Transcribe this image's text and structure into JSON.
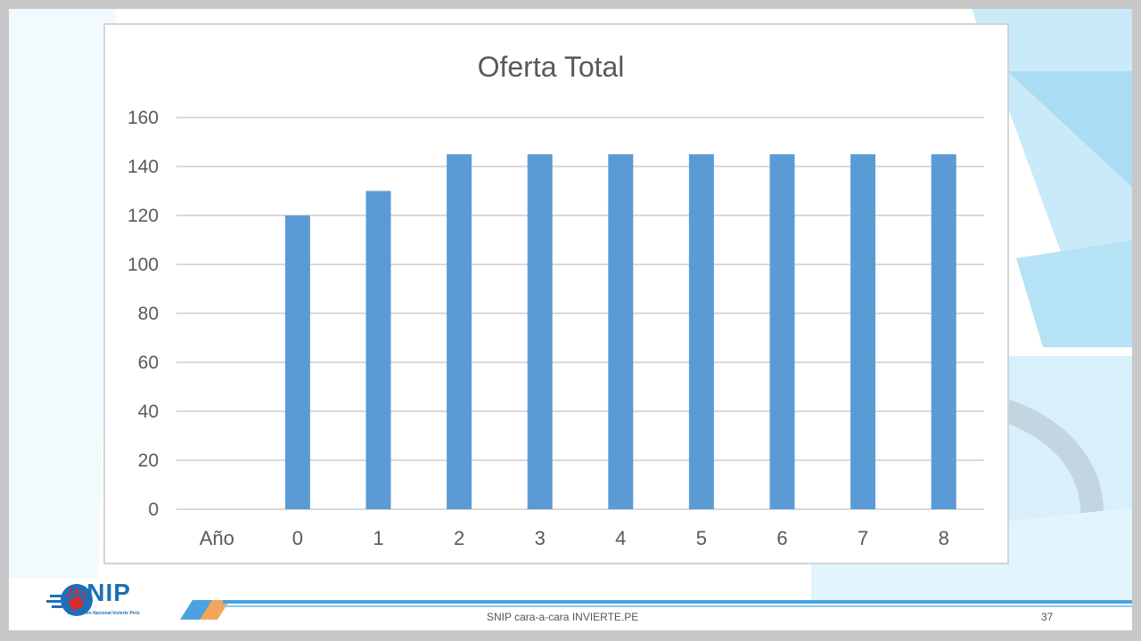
{
  "slide": {
    "footer_text": "SNIP cara-a-cara INVIERTE.PE",
    "page_number": "37"
  },
  "logo": {
    "name": "ANIP",
    "subtitle": "Asociación Nacional Invierte Perú"
  },
  "colors": {
    "bar": "#5b9bd5",
    "grid": "#d9d9d9",
    "axis_text": "#595959",
    "title": "#595959",
    "accent": "#1d6fb8",
    "background_accent": "#bfe4f6"
  },
  "chart_data": {
    "type": "bar",
    "title": "Oferta Total",
    "categories": [
      "Año",
      "0",
      "1",
      "2",
      "3",
      "4",
      "5",
      "6",
      "7",
      "8"
    ],
    "values": [
      0,
      120,
      130,
      145,
      145,
      145,
      145,
      145,
      145,
      145
    ],
    "ylim": [
      0,
      160
    ],
    "yticks": [
      0,
      20,
      40,
      60,
      80,
      100,
      120,
      140,
      160
    ],
    "grid": true,
    "legend": "none",
    "xlabel": "",
    "ylabel": ""
  }
}
